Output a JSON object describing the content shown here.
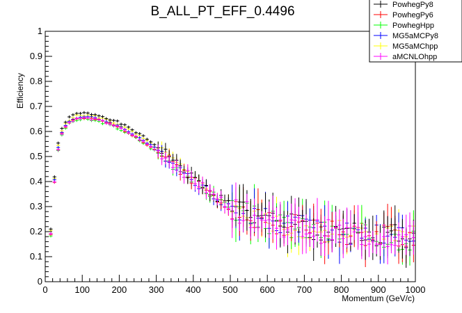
{
  "chart_data": {
    "type": "scatter",
    "title": "B_ALL_PT_EFF_0.4496",
    "xlabel": "Momentum (GeV/c)",
    "ylabel": "Efficiency",
    "xlim": [
      0,
      1000
    ],
    "ylim": [
      0,
      1
    ],
    "xticks": [
      0,
      100,
      200,
      300,
      400,
      500,
      600,
      700,
      800,
      900,
      1000
    ],
    "yticks": [
      0,
      0.1,
      0.2,
      0.3,
      0.4,
      0.5,
      0.6,
      0.7,
      0.8,
      0.9,
      1
    ],
    "grid": false,
    "legend_position": "top-right",
    "series": [
      {
        "name": "PowhegPy8",
        "color": "#000000",
        "seed": 1
      },
      {
        "name": "PowhegPy6",
        "color": "#ff0000",
        "seed": 2
      },
      {
        "name": "PowhegHpp",
        "color": "#00ff00",
        "seed": 3
      },
      {
        "name": "MG5aMCPy8",
        "color": "#0000ff",
        "seed": 4
      },
      {
        "name": "MG5aMChpp",
        "color": "#ffff00",
        "seed": 5
      },
      {
        "name": "aMCNLOhpp",
        "color": "#ff00ff",
        "seed": 6
      }
    ],
    "x": [
      15,
      25,
      35,
      45,
      55,
      65,
      75,
      85,
      95,
      105,
      115,
      125,
      135,
      145,
      155,
      165,
      175,
      185,
      195,
      205,
      215,
      225,
      235,
      245,
      255,
      265,
      275,
      285,
      295,
      305,
      315,
      325,
      335,
      345,
      355,
      365,
      375,
      385,
      395,
      405,
      415,
      425,
      435,
      445,
      455,
      465,
      475,
      485,
      495,
      505,
      515,
      525,
      535,
      545,
      555,
      565,
      575,
      585,
      595,
      605,
      615,
      625,
      635,
      645,
      655,
      665,
      675,
      685,
      695,
      705,
      715,
      725,
      735,
      745,
      755,
      765,
      775,
      785,
      795,
      805,
      815,
      825,
      835,
      845,
      855,
      865,
      875,
      885,
      895,
      905,
      915,
      925,
      935,
      945,
      955,
      965,
      975,
      985,
      995
    ],
    "base_y": [
      0.19,
      0.4,
      0.53,
      0.59,
      0.62,
      0.635,
      0.645,
      0.65,
      0.652,
      0.653,
      0.652,
      0.65,
      0.648,
      0.644,
      0.64,
      0.635,
      0.63,
      0.624,
      0.618,
      0.611,
      0.603,
      0.595,
      0.587,
      0.578,
      0.569,
      0.559,
      0.549,
      0.539,
      0.529,
      0.518,
      0.507,
      0.496,
      0.485,
      0.473,
      0.461,
      0.449,
      0.437,
      0.425,
      0.413,
      0.401,
      0.389,
      0.377,
      0.366,
      0.355,
      0.344,
      0.334,
      0.324,
      0.315,
      0.306,
      0.298,
      0.29,
      0.283,
      0.276,
      0.27,
      0.264,
      0.259,
      0.254,
      0.249,
      0.245,
      0.241,
      0.237,
      0.233,
      0.23,
      0.227,
      0.224,
      0.221,
      0.218,
      0.216,
      0.213,
      0.211,
      0.209,
      0.207,
      0.205,
      0.203,
      0.201,
      0.199,
      0.197,
      0.196,
      0.194,
      0.193,
      0.191,
      0.19,
      0.189,
      0.188,
      0.187,
      0.186,
      0.185,
      0.184,
      0.183,
      0.182,
      0.181,
      0.18,
      0.18,
      0.179,
      0.178,
      0.178,
      0.177,
      0.177,
      0.176
    ],
    "offsets": [
      0.02,
      0.0,
      -0.005,
      0.005,
      0.012,
      0.0
    ]
  }
}
